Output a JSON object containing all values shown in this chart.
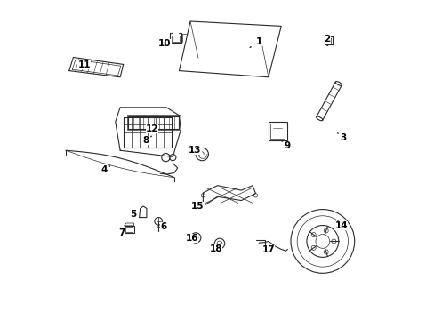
{
  "background_color": "#ffffff",
  "line_color": "#2a2a2a",
  "fig_width": 4.89,
  "fig_height": 3.6,
  "dpi": 100,
  "label_positions": {
    "1": [
      0.63,
      0.87,
      0.6,
      0.852
    ],
    "2": [
      0.845,
      0.88,
      0.845,
      0.862
    ],
    "3": [
      0.895,
      0.57,
      0.88,
      0.582
    ],
    "4": [
      0.145,
      0.47,
      0.165,
      0.482
    ],
    "5": [
      0.235,
      0.33,
      0.255,
      0.33
    ],
    "6": [
      0.33,
      0.29,
      0.318,
      0.29
    ],
    "7": [
      0.2,
      0.27,
      0.22,
      0.27
    ],
    "8": [
      0.275,
      0.56,
      0.29,
      0.572
    ],
    "9": [
      0.72,
      0.545,
      0.705,
      0.557
    ],
    "10": [
      0.335,
      0.865,
      0.352,
      0.852
    ],
    "11": [
      0.082,
      0.798,
      0.102,
      0.786
    ],
    "12": [
      0.295,
      0.598,
      0.315,
      0.61
    ],
    "13": [
      0.43,
      0.532,
      0.442,
      0.52
    ],
    "14": [
      0.888,
      0.295,
      0.87,
      0.308
    ],
    "15": [
      0.438,
      0.355,
      0.458,
      0.355
    ],
    "16": [
      0.42,
      0.255,
      0.432,
      0.255
    ],
    "17": [
      0.66,
      0.218,
      0.672,
      0.23
    ],
    "18": [
      0.495,
      0.222,
      0.507,
      0.234
    ]
  }
}
